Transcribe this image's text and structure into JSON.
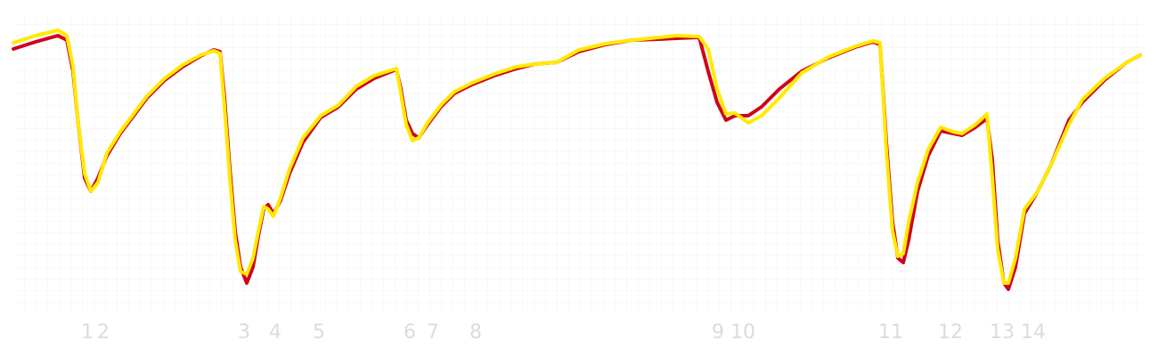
{
  "chart_data": {
    "type": "line",
    "x": [
      15,
      40,
      65,
      75,
      82,
      88,
      95,
      102,
      110,
      120,
      135,
      150,
      165,
      185,
      205,
      225,
      240,
      247,
      252,
      258,
      264,
      270,
      277,
      284,
      290,
      296,
      301,
      307,
      315,
      325,
      340,
      360,
      380,
      400,
      420,
      445,
      450,
      456,
      463,
      470,
      480,
      495,
      510,
      530,
      555,
      580,
      600,
      625,
      650,
      680,
      710,
      740,
      760,
      785,
      795,
      805,
      815,
      825,
      840,
      855,
      875,
      900,
      930,
      960,
      980,
      988,
      995,
      1002,
      1008,
      1014,
      1020,
      1030,
      1042,
      1056,
      1070,
      1080,
      1095,
      1108,
      1114,
      1120,
      1127,
      1132,
      1140,
      1150,
      1165,
      1180,
      1200,
      1215,
      1240,
      1265,
      1280
    ],
    "series": [
      {
        "color": "#d0021b",
        "values": [
          285,
          293,
          300,
          295,
          260,
          200,
          140,
          125,
          140,
          165,
          190,
          210,
          230,
          250,
          265,
          277,
          284,
          282,
          230,
          150,
          80,
          40,
          22,
          40,
          75,
          105,
          110,
          100,
          115,
          145,
          180,
          208,
          220,
          240,
          252,
          262,
          240,
          205,
          190,
          185,
          200,
          220,
          235,
          245,
          255,
          263,
          268,
          270,
          282,
          290,
          295,
          296,
          297,
          298,
          260,
          225,
          205,
          210,
          210,
          220,
          240,
          260,
          275,
          287,
          293,
          290,
          180,
          90,
          50,
          45,
          70,
          125,
          165,
          193,
          190,
          188,
          197,
          207,
          160,
          70,
          22,
          15,
          40,
          100,
          125,
          155,
          205,
          225,
          250,
          270,
          278
        ]
      },
      {
        "color": "#ffea00",
        "values": [
          292,
          300,
          306,
          300,
          265,
          200,
          145,
          125,
          135,
          168,
          192,
          212,
          232,
          252,
          267,
          278,
          283,
          280,
          220,
          140,
          70,
          35,
          32,
          50,
          80,
          108,
          105,
          97,
          118,
          150,
          185,
          210,
          222,
          243,
          255,
          263,
          235,
          200,
          182,
          185,
          202,
          222,
          237,
          247,
          257,
          265,
          268,
          270,
          284,
          291,
          295,
          298,
          300,
          299,
          285,
          240,
          212,
          213,
          202,
          210,
          230,
          258,
          276,
          288,
          294,
          292,
          170,
          80,
          52,
          55,
          90,
          135,
          172,
          197,
          192,
          190,
          200,
          212,
          140,
          60,
          22,
          22,
          50,
          105,
          125,
          155,
          200,
          228,
          252,
          270,
          278
        ]
      }
    ],
    "annotations": [
      {
        "label": "1",
        "x": 98
      },
      {
        "label": "2",
        "x": 116
      },
      {
        "label": "3",
        "x": 274
      },
      {
        "label": "4",
        "x": 309
      },
      {
        "label": "5",
        "x": 358
      },
      {
        "label": "6",
        "x": 460
      },
      {
        "label": "7",
        "x": 486
      },
      {
        "label": "8",
        "x": 534
      },
      {
        "label": "9",
        "x": 806
      },
      {
        "label": "10",
        "x": 834
      },
      {
        "label": "11",
        "x": 1000
      },
      {
        "label": "12",
        "x": 1067
      },
      {
        "label": "13",
        "x": 1125
      },
      {
        "label": "14",
        "x": 1160
      }
    ],
    "xlim": [
      0,
      1300
    ],
    "ylim": [
      0,
      340
    ]
  }
}
